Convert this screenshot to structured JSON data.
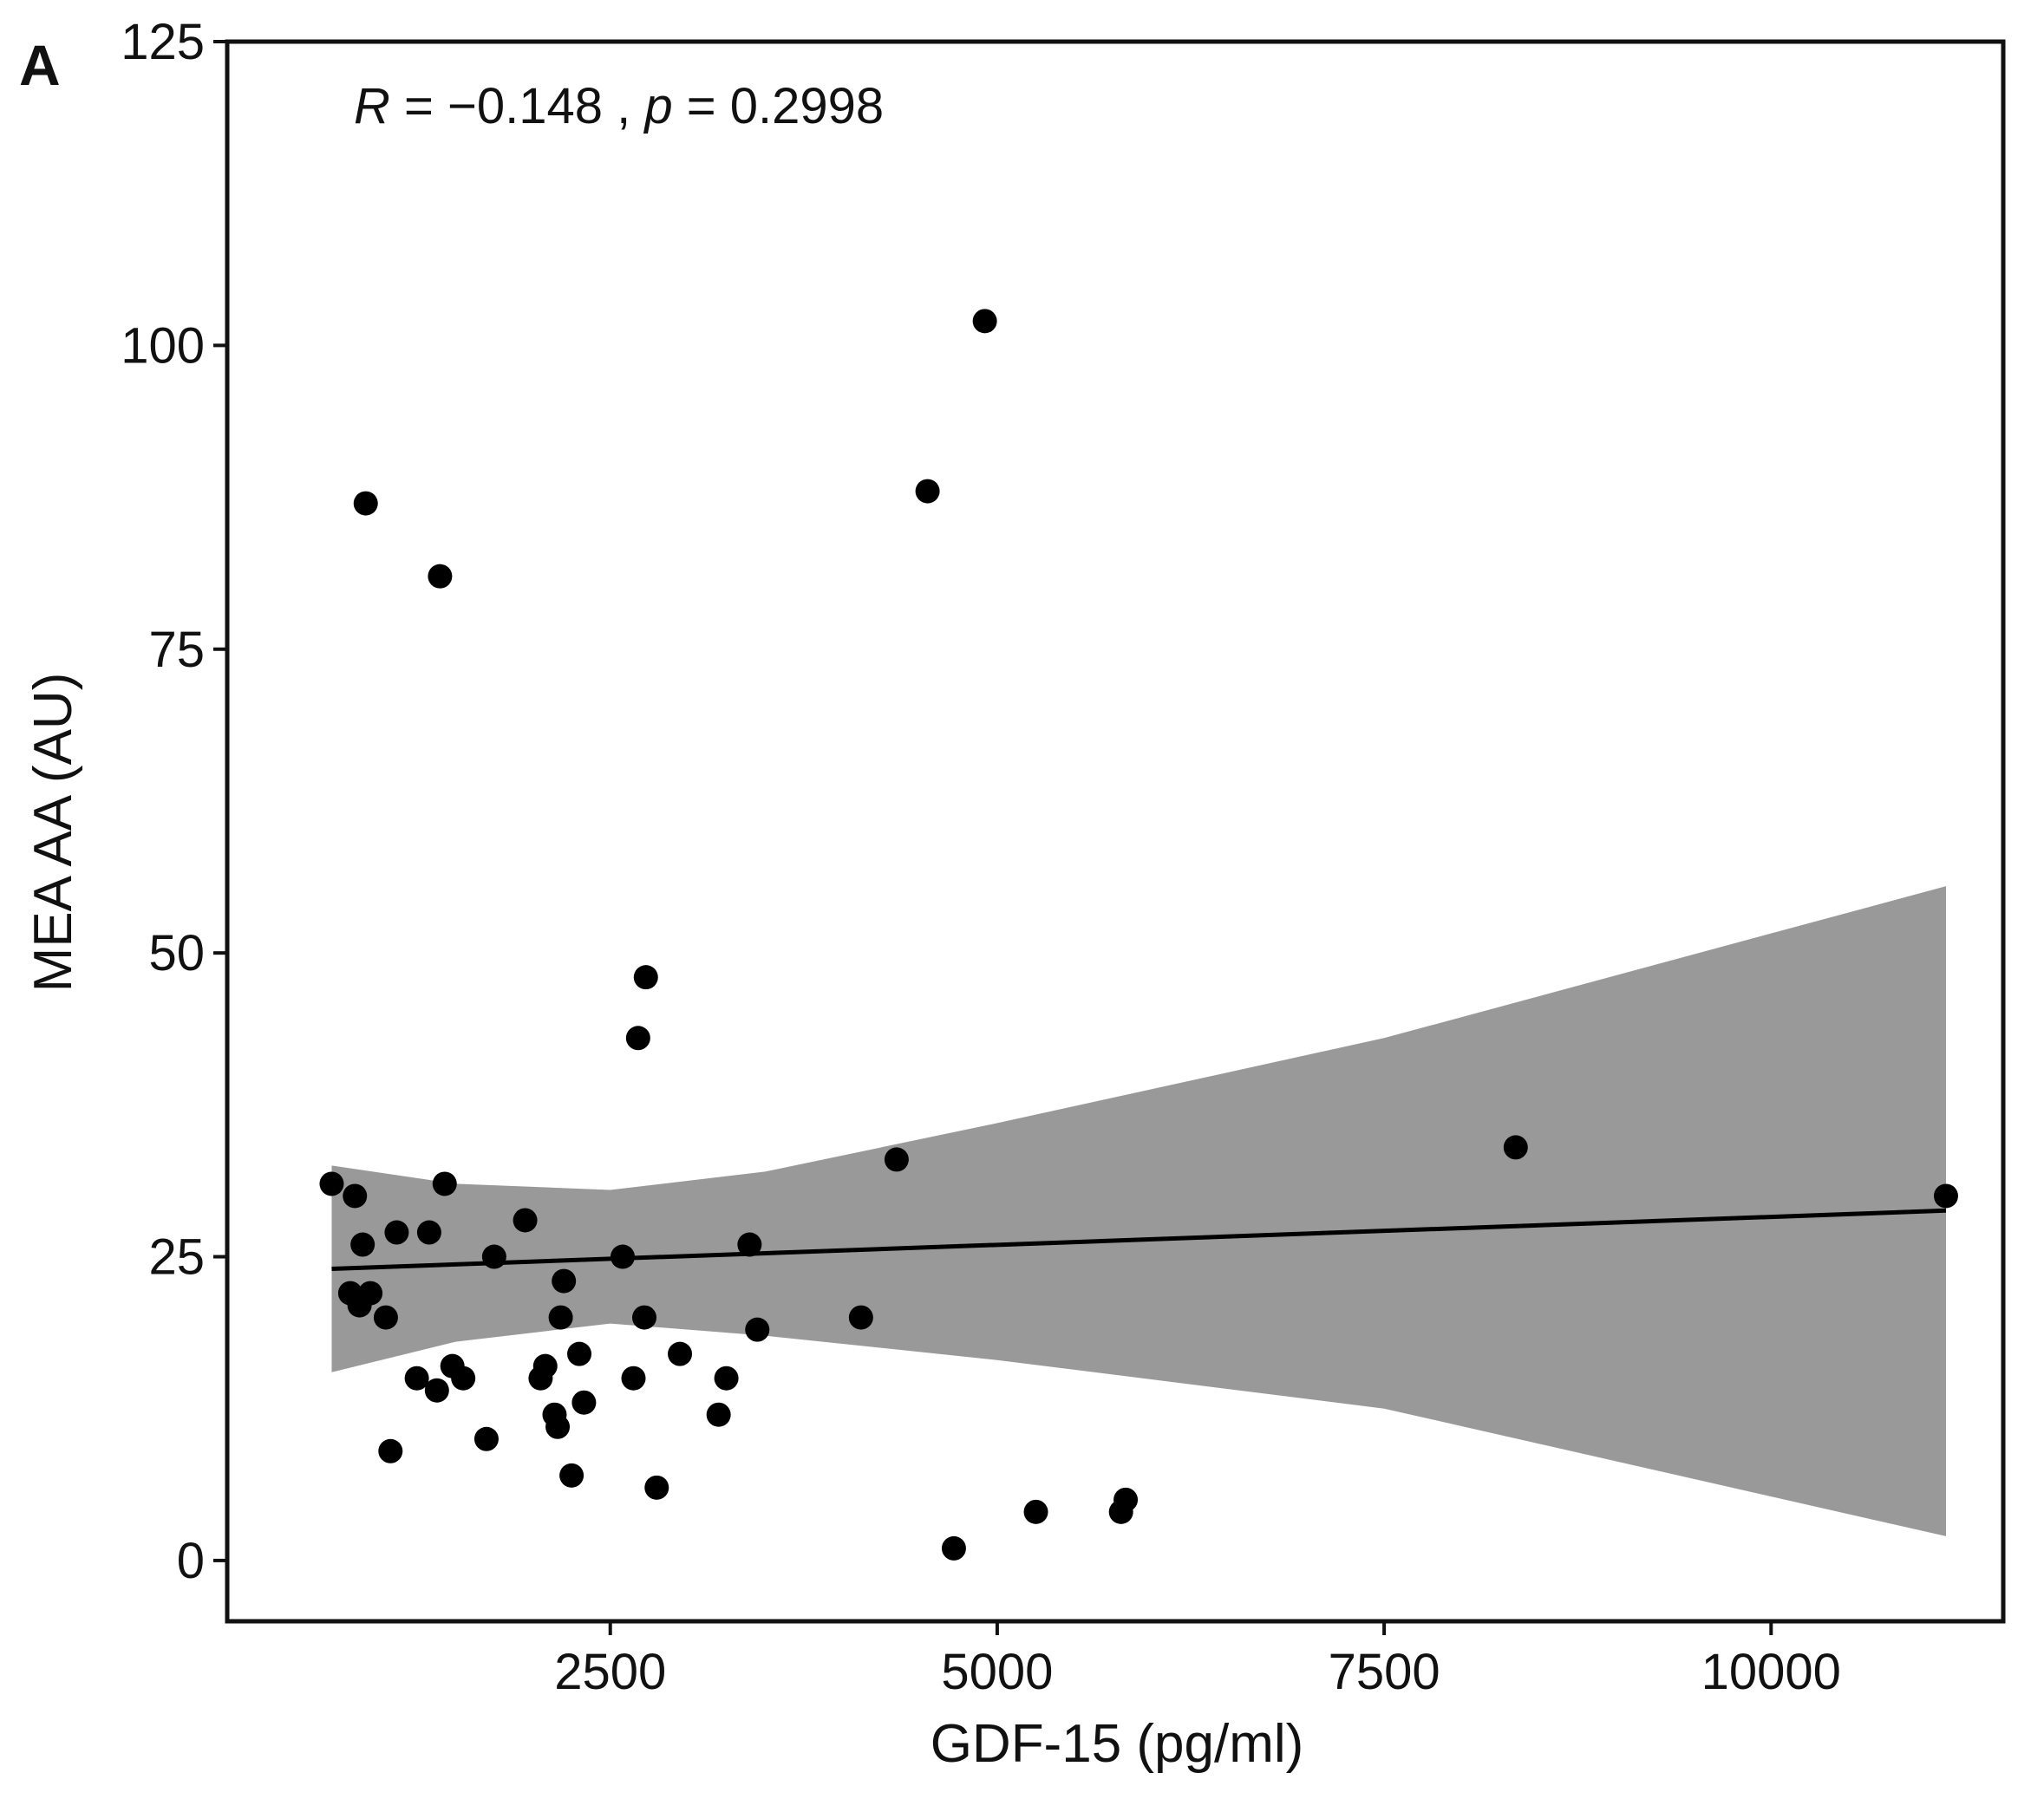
{
  "panel_label": "A",
  "chart_data": {
    "type": "scatter",
    "title": "",
    "xlabel": "GDF-15 (pg/ml)",
    "ylabel": "MEA AA (AU)",
    "xlim": [
      25,
      11500
    ],
    "ylim": [
      -5,
      125
    ],
    "x_ticks": [
      2500,
      5000,
      7500,
      10000
    ],
    "x_tick_labels": [
      "2500",
      "5000",
      "7500",
      "10000"
    ],
    "y_ticks": [
      0,
      25,
      50,
      75,
      100,
      125
    ],
    "y_tick_labels": [
      "0",
      "25",
      "50",
      "75",
      "100",
      "125"
    ],
    "grid": false,
    "annotation": {
      "r_symbol": "R",
      "r_text": " = −0.148 , ",
      "p_symbol": "p",
      "p_text": " = 0.2998"
    },
    "points": [
      {
        "x": 700,
        "y": 31
      },
      {
        "x": 820,
        "y": 22
      },
      {
        "x": 850,
        "y": 30
      },
      {
        "x": 880,
        "y": 21
      },
      {
        "x": 900,
        "y": 26
      },
      {
        "x": 920,
        "y": 87
      },
      {
        "x": 950,
        "y": 22
      },
      {
        "x": 1050,
        "y": 20
      },
      {
        "x": 1080,
        "y": 9
      },
      {
        "x": 1120,
        "y": 27
      },
      {
        "x": 1250,
        "y": 15
      },
      {
        "x": 1330,
        "y": 27
      },
      {
        "x": 1380,
        "y": 14
      },
      {
        "x": 1400,
        "y": 81
      },
      {
        "x": 1430,
        "y": 31
      },
      {
        "x": 1480,
        "y": 16
      },
      {
        "x": 1550,
        "y": 15
      },
      {
        "x": 1700,
        "y": 10
      },
      {
        "x": 1750,
        "y": 25
      },
      {
        "x": 1950,
        "y": 28
      },
      {
        "x": 2050,
        "y": 15
      },
      {
        "x": 2080,
        "y": 16
      },
      {
        "x": 2140,
        "y": 12
      },
      {
        "x": 2160,
        "y": 11
      },
      {
        "x": 2180,
        "y": 20
      },
      {
        "x": 2200,
        "y": 23
      },
      {
        "x": 2250,
        "y": 7
      },
      {
        "x": 2300,
        "y": 17
      },
      {
        "x": 2330,
        "y": 13
      },
      {
        "x": 2580,
        "y": 25
      },
      {
        "x": 2650,
        "y": 15
      },
      {
        "x": 2680,
        "y": 43
      },
      {
        "x": 2720,
        "y": 20
      },
      {
        "x": 2730,
        "y": 48
      },
      {
        "x": 2800,
        "y": 6
      },
      {
        "x": 2950,
        "y": 17
      },
      {
        "x": 3200,
        "y": 12
      },
      {
        "x": 3250,
        "y": 15
      },
      {
        "x": 3400,
        "y": 26
      },
      {
        "x": 3450,
        "y": 19
      },
      {
        "x": 4120,
        "y": 20
      },
      {
        "x": 4350,
        "y": 33
      },
      {
        "x": 4550,
        "y": 88
      },
      {
        "x": 4720,
        "y": 1
      },
      {
        "x": 4920,
        "y": 102
      },
      {
        "x": 5250,
        "y": 4
      },
      {
        "x": 5800,
        "y": 4
      },
      {
        "x": 5830,
        "y": 5
      },
      {
        "x": 8350,
        "y": 34
      },
      {
        "x": 11130,
        "y": 30
      }
    ],
    "regression_line": {
      "x": [
        700,
        11130
      ],
      "y": [
        24.0,
        28.8
      ]
    },
    "confidence_band": {
      "x": [
        700,
        1500,
        2500,
        3500,
        5000,
        7500,
        11130
      ],
      "lower": [
        15.5,
        18.0,
        19.5,
        18.5,
        16.5,
        12.5,
        2.0
      ],
      "upper": [
        32.5,
        31.0,
        30.5,
        32.0,
        36.0,
        43.0,
        55.5
      ]
    },
    "colors": {
      "points": "#000000",
      "line": "#000000",
      "band": "#999999",
      "frame": "#111111"
    }
  }
}
